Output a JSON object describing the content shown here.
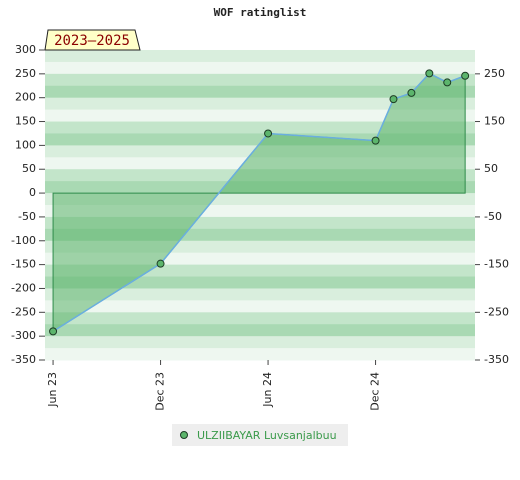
{
  "chart_data": {
    "type": "area",
    "title": "WOF ratinglist",
    "badge": "2023–2025",
    "x": [
      "2023-06",
      "2023-12",
      "2024-06",
      "2024-12",
      "2025-01",
      "2025-02",
      "2025-03",
      "2025-04",
      "2025-05"
    ],
    "series": [
      {
        "name": "ULZIIBAYAR Luvsanjalbuu",
        "color": "#5cb56c",
        "line_color": "#6aaee0",
        "values": [
          -290,
          -148,
          125,
          110,
          197,
          210,
          251,
          232,
          246
        ]
      }
    ],
    "xticks": [
      {
        "value": "2023-06",
        "label": "Jun 23"
      },
      {
        "value": "2023-12",
        "label": "Dec 23"
      },
      {
        "value": "2024-06",
        "label": "Jun 24"
      },
      {
        "value": "2024-12",
        "label": "Dec 24"
      }
    ],
    "ylim": [
      -350,
      300
    ],
    "yticks": [
      300,
      250,
      200,
      150,
      100,
      50,
      0,
      -50,
      -100,
      -150,
      -200,
      -250,
      -300,
      -350
    ],
    "y2lim": [
      -350,
      300
    ],
    "y2ticks": [
      250,
      150,
      50,
      -50,
      -150,
      -250,
      -350
    ],
    "grid": true
  }
}
